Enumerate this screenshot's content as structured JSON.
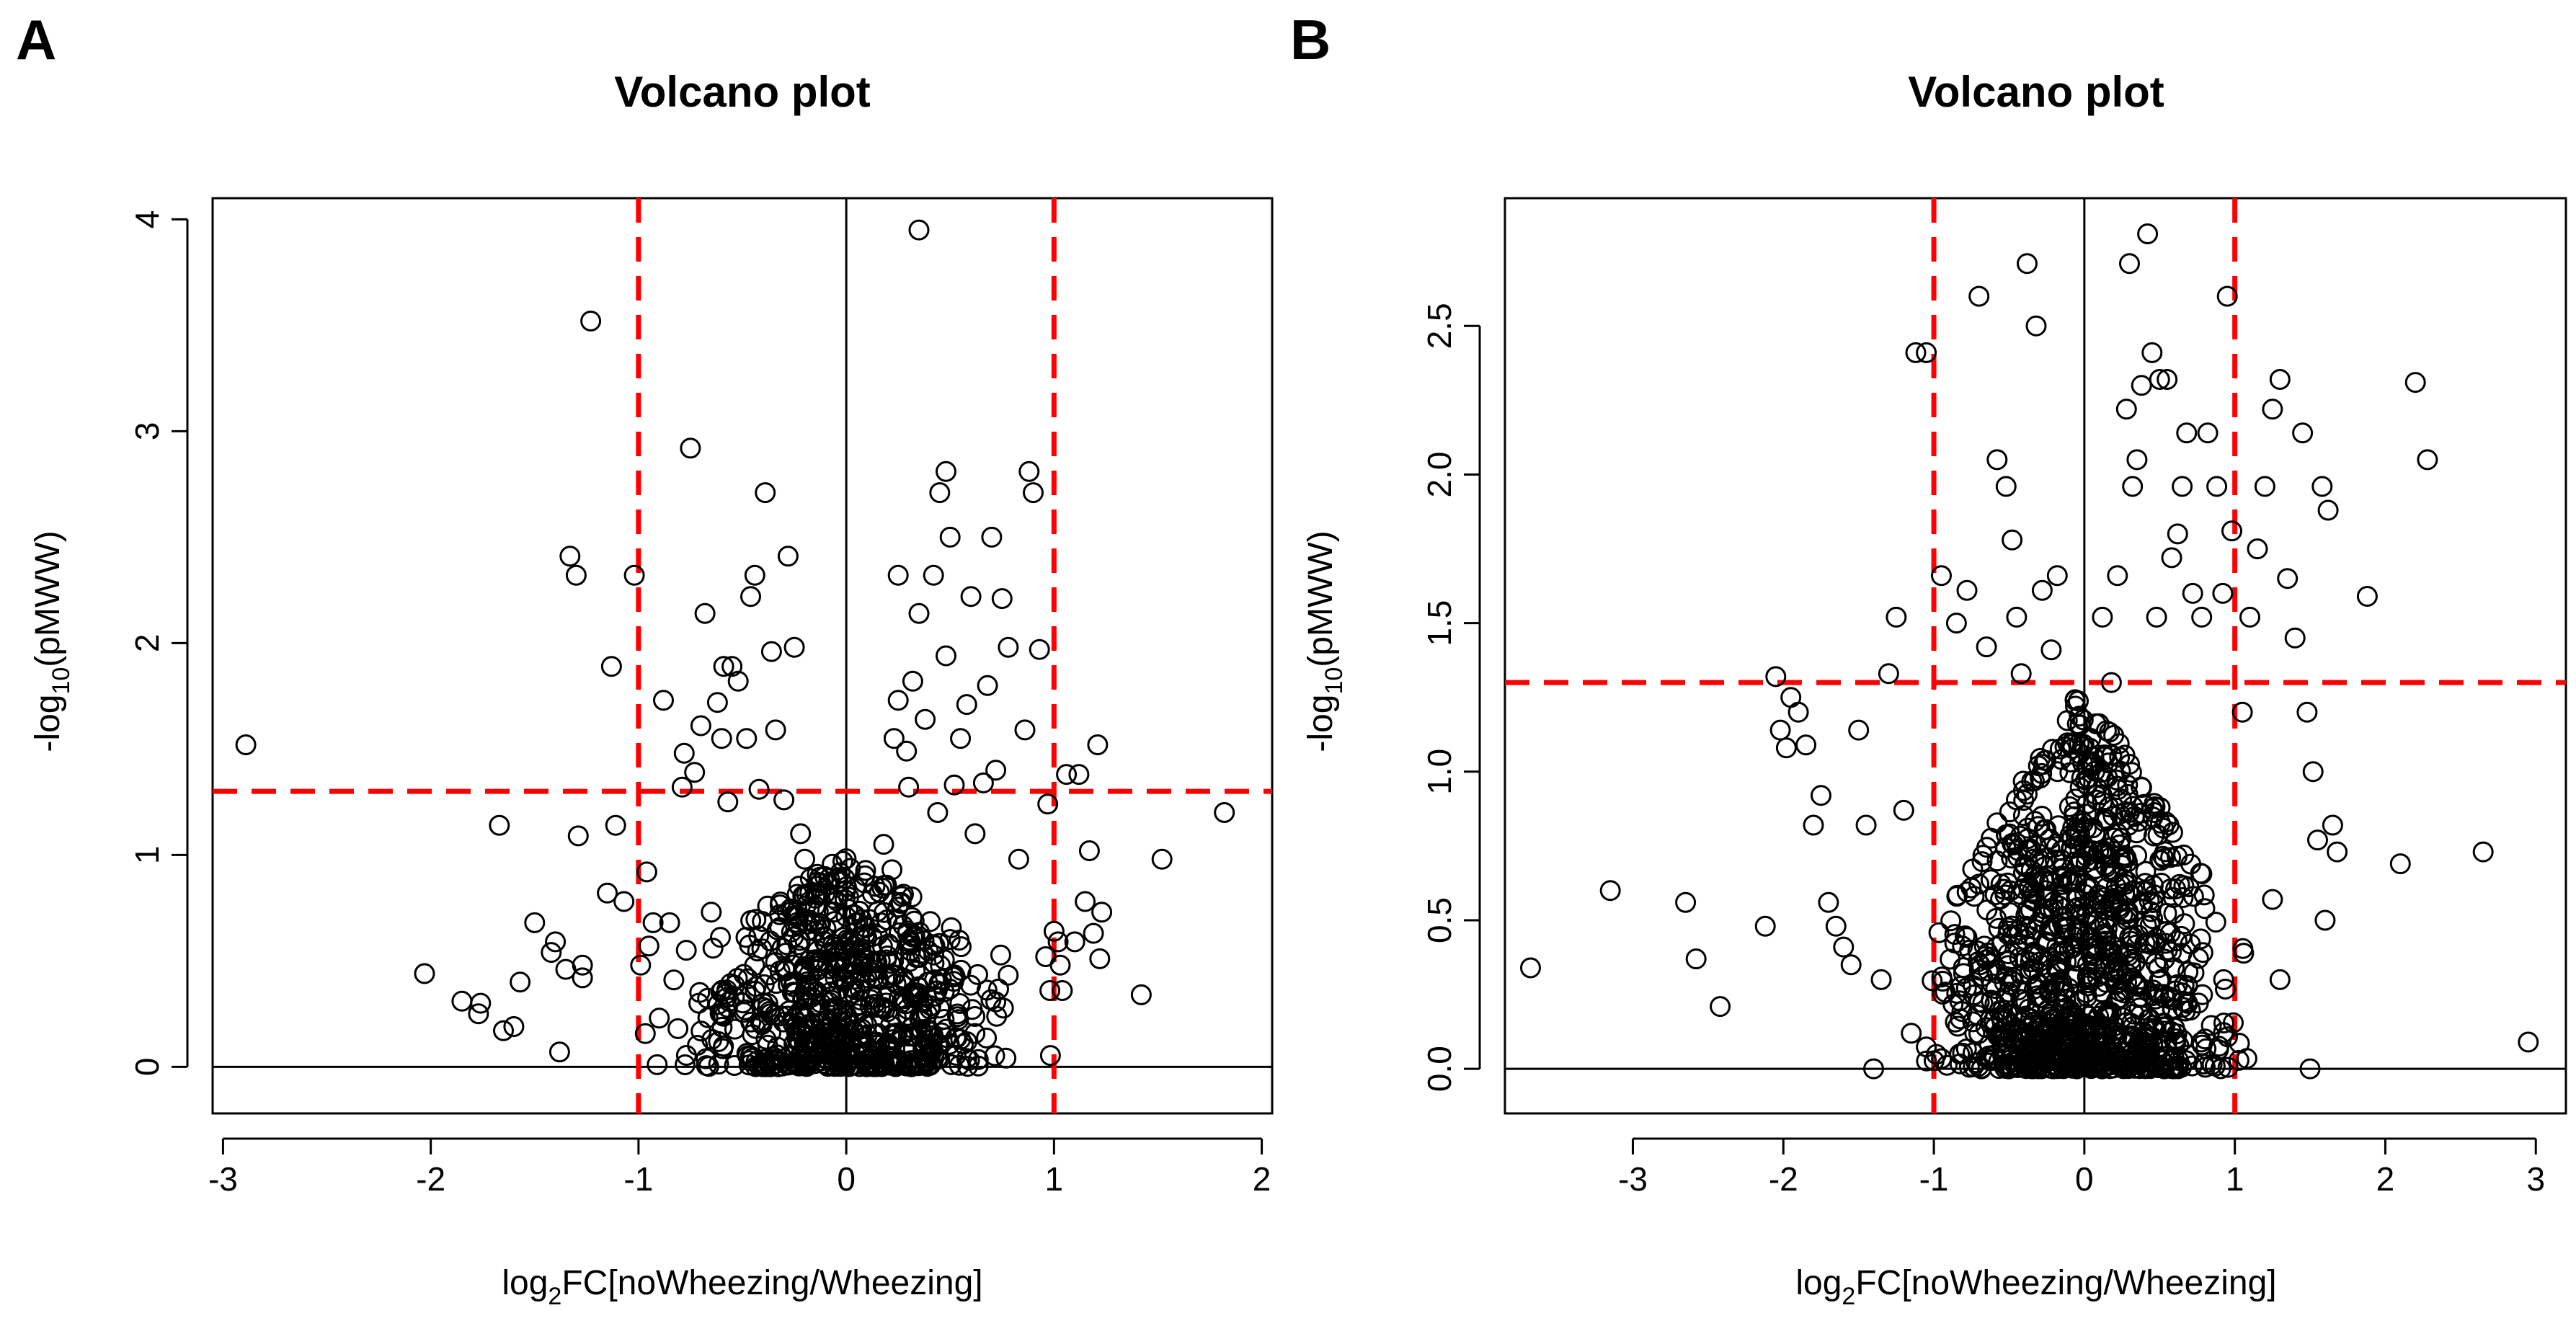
{
  "chart_data": [
    {
      "panel": "A",
      "type": "scatter",
      "title": "Volcano plot",
      "xlabel": {
        "prefix": "log",
        "sub": "2",
        "suffix": "FC[noWheezing/Wheezing]"
      },
      "ylabel": {
        "prefix": "-log",
        "sub": "10",
        "suffix": "(pMWW)"
      },
      "xlim": [
        -3.05,
        2.05
      ],
      "ylim": [
        -0.22,
        4.1
      ],
      "xticks": [
        {
          "v": -3,
          "label": "-3"
        },
        {
          "v": -2,
          "label": "-2"
        },
        {
          "v": -1,
          "label": "-1"
        },
        {
          "v": 0,
          "label": "0"
        },
        {
          "v": 1,
          "label": "1"
        },
        {
          "v": 2,
          "label": "2"
        }
      ],
      "yticks": [
        {
          "v": 0,
          "label": "0"
        },
        {
          "v": 1,
          "label": "1"
        },
        {
          "v": 2,
          "label": "2"
        },
        {
          "v": 3,
          "label": "3"
        },
        {
          "v": 4,
          "label": "4"
        }
      ],
      "vlines_dashed": [
        -1,
        1
      ],
      "hline_dashed": 1.3,
      "zero_lines": {
        "x": 0,
        "y": 0
      },
      "colors": {
        "threshold": "#ff0000",
        "points": "#000000",
        "axes": "#000000"
      },
      "points": [
        [
          -2.89,
          1.52
        ],
        [
          -2.03,
          0.44
        ],
        [
          -1.85,
          0.31
        ],
        [
          -1.76,
          0.3
        ],
        [
          -1.77,
          0.25
        ],
        [
          -1.67,
          1.14
        ],
        [
          -1.65,
          0.17
        ],
        [
          -1.6,
          0.19
        ],
        [
          -1.57,
          0.4
        ],
        [
          -1.5,
          0.68
        ],
        [
          -1.42,
          0.54
        ],
        [
          -1.4,
          0.59
        ],
        [
          -1.38,
          0.07
        ],
        [
          -1.35,
          0.46
        ],
        [
          -1.33,
          2.41
        ],
        [
          -1.3,
          2.32
        ],
        [
          -1.29,
          1.09
        ],
        [
          -1.27,
          0.48
        ],
        [
          -1.27,
          0.42
        ],
        [
          -1.23,
          3.52
        ],
        [
          -1.15,
          0.82
        ],
        [
          -1.13,
          1.89
        ],
        [
          -1.11,
          1.14
        ],
        [
          -1.07,
          0.78
        ],
        [
          -1.02,
          2.32
        ],
        [
          -0.99,
          0.48
        ],
        [
          -0.96,
          0.92
        ],
        [
          -0.95,
          0.57
        ],
        [
          -0.93,
          0.68
        ],
        [
          -0.91,
          0.01
        ],
        [
          -0.9,
          0.23
        ],
        [
          -0.88,
          1.73
        ],
        [
          -0.85,
          0.68
        ],
        [
          -0.83,
          0.41
        ],
        [
          -0.81,
          0.18
        ],
        [
          -0.79,
          1.32
        ],
        [
          -0.78,
          1.48
        ],
        [
          -0.77,
          0.55
        ],
        [
          -0.75,
          2.92
        ],
        [
          -0.73,
          1.39
        ],
        [
          -0.71,
          0.3
        ],
        [
          -0.7,
          1.61
        ],
        [
          -0.68,
          2.14
        ],
        [
          -0.65,
          0.73
        ],
        [
          -0.62,
          1.72
        ],
        [
          -0.6,
          1.55
        ],
        [
          -0.59,
          1.89
        ],
        [
          -0.57,
          1.25
        ],
        [
          -0.55,
          1.89
        ],
        [
          -0.52,
          1.82
        ],
        [
          -0.48,
          1.55
        ],
        [
          -0.46,
          2.22
        ],
        [
          -0.44,
          2.32
        ],
        [
          -0.42,
          1.31
        ],
        [
          -0.39,
          2.71
        ],
        [
          -0.36,
          1.96
        ],
        [
          -0.34,
          1.59
        ],
        [
          -0.3,
          1.26
        ],
        [
          -0.28,
          2.41
        ],
        [
          -0.25,
          1.98
        ],
        [
          -0.22,
          1.1
        ],
        [
          -0.2,
          0.98
        ],
        [
          -0.15,
          0.64
        ],
        [
          -0.1,
          0.18
        ],
        [
          -0.05,
          0.08
        ],
        [
          0.05,
          0.25
        ],
        [
          0.1,
          0.42
        ],
        [
          0.15,
          0.62
        ],
        [
          0.18,
          1.05
        ],
        [
          0.22,
          0.93
        ],
        [
          0.23,
          1.55
        ],
        [
          0.25,
          1.73
        ],
        [
          0.25,
          2.32
        ],
        [
          0.29,
          1.49
        ],
        [
          0.3,
          1.32
        ],
        [
          0.32,
          1.82
        ],
        [
          0.35,
          2.14
        ],
        [
          0.35,
          3.95
        ],
        [
          0.38,
          1.64
        ],
        [
          0.42,
          2.32
        ],
        [
          0.44,
          1.2
        ],
        [
          0.45,
          2.71
        ],
        [
          0.48,
          1.94
        ],
        [
          0.48,
          2.81
        ],
        [
          0.5,
          2.5
        ],
        [
          0.52,
          1.33
        ],
        [
          0.55,
          1.55
        ],
        [
          0.58,
          1.71
        ],
        [
          0.6,
          2.22
        ],
        [
          0.62,
          1.1
        ],
        [
          0.66,
          1.34
        ],
        [
          0.68,
          1.8
        ],
        [
          0.7,
          2.5
        ],
        [
          0.72,
          1.4
        ],
        [
          0.75,
          2.21
        ],
        [
          0.78,
          1.98
        ],
        [
          0.83,
          0.98
        ],
        [
          0.86,
          1.59
        ],
        [
          0.88,
          2.81
        ],
        [
          0.9,
          2.71
        ],
        [
          0.93,
          1.97
        ],
        [
          0.96,
          0.52
        ],
        [
          0.97,
          1.24
        ],
        [
          0.98,
          0.36
        ],
        [
          1.0,
          0.64
        ],
        [
          1.02,
          0.59
        ],
        [
          1.03,
          0.48
        ],
        [
          1.04,
          0.36
        ],
        [
          1.06,
          1.38
        ],
        [
          1.1,
          0.59
        ],
        [
          1.12,
          1.38
        ],
        [
          1.15,
          0.78
        ],
        [
          1.17,
          1.02
        ],
        [
          1.19,
          0.63
        ],
        [
          1.21,
          1.52
        ],
        [
          1.22,
          0.51
        ],
        [
          1.23,
          0.73
        ],
        [
          1.42,
          0.34
        ],
        [
          1.52,
          0.98
        ],
        [
          1.82,
          1.2
        ]
      ],
      "cluster": {
        "n": 700,
        "seed": 11,
        "x_sd": 0.32,
        "y_max": 1.0
      }
    },
    {
      "panel": "B",
      "type": "scatter",
      "title": "Volcano plot",
      "xlabel": {
        "prefix": "log",
        "sub": "2",
        "suffix": "FC[noWheezing/Wheezing]"
      },
      "ylabel": {
        "prefix": "-log",
        "sub": "10",
        "suffix": "(pMWW)"
      },
      "xlim": [
        -3.85,
        3.2
      ],
      "ylim": [
        -0.15,
        2.93
      ],
      "xticks": [
        {
          "v": -3,
          "label": "-3"
        },
        {
          "v": -2,
          "label": "-2"
        },
        {
          "v": -1,
          "label": "-1"
        },
        {
          "v": 0,
          "label": "0"
        },
        {
          "v": 1,
          "label": "1"
        },
        {
          "v": 2,
          "label": "2"
        },
        {
          "v": 3,
          "label": "3"
        }
      ],
      "yticks": [
        {
          "v": 0,
          "label": "0.0"
        },
        {
          "v": 0.5,
          "label": "0.5"
        },
        {
          "v": 1.0,
          "label": "1.0"
        },
        {
          "v": 1.5,
          "label": "1.5"
        },
        {
          "v": 2.0,
          "label": "2.0"
        },
        {
          "v": 2.5,
          "label": "2.5"
        }
      ],
      "vlines_dashed": [
        -1,
        1
      ],
      "hline_dashed": 1.3,
      "zero_lines": {
        "x": 0,
        "y": 0
      },
      "colors": {
        "threshold": "#ff0000",
        "points": "#000000",
        "axes": "#000000"
      },
      "points": [
        [
          -3.68,
          0.34
        ],
        [
          -3.15,
          0.6
        ],
        [
          -2.65,
          0.56
        ],
        [
          -2.58,
          0.37
        ],
        [
          -2.42,
          0.21
        ],
        [
          -2.12,
          0.48
        ],
        [
          -2.05,
          1.32
        ],
        [
          -2.02,
          1.14
        ],
        [
          -1.98,
          1.08
        ],
        [
          -1.95,
          1.25
        ],
        [
          -1.9,
          1.2
        ],
        [
          -1.85,
          1.09
        ],
        [
          -1.8,
          0.82
        ],
        [
          -1.75,
          0.92
        ],
        [
          -1.7,
          0.56
        ],
        [
          -1.65,
          0.48
        ],
        [
          -1.6,
          0.41
        ],
        [
          -1.55,
          0.35
        ],
        [
          -1.5,
          1.14
        ],
        [
          -1.45,
          0.82
        ],
        [
          -1.4,
          0.0
        ],
        [
          -1.35,
          0.3
        ],
        [
          -1.3,
          1.33
        ],
        [
          -1.25,
          1.52
        ],
        [
          -1.2,
          0.87
        ],
        [
          -1.15,
          0.12
        ],
        [
          -1.12,
          2.41
        ],
        [
          -1.05,
          2.41
        ],
        [
          -0.95,
          1.66
        ],
        [
          -0.85,
          1.5
        ],
        [
          -0.78,
          1.61
        ],
        [
          -0.7,
          2.6
        ],
        [
          -0.65,
          1.42
        ],
        [
          -0.58,
          2.05
        ],
        [
          -0.52,
          1.96
        ],
        [
          -0.48,
          1.78
        ],
        [
          -0.45,
          1.52
        ],
        [
          -0.42,
          1.33
        ],
        [
          -0.38,
          2.71
        ],
        [
          -0.32,
          2.5
        ],
        [
          -0.28,
          1.61
        ],
        [
          -0.22,
          1.41
        ],
        [
          -0.18,
          1.66
        ],
        [
          0.12,
          1.52
        ],
        [
          0.18,
          1.3
        ],
        [
          0.22,
          1.66
        ],
        [
          0.28,
          2.22
        ],
        [
          0.3,
          2.71
        ],
        [
          0.32,
          1.96
        ],
        [
          0.35,
          2.05
        ],
        [
          0.38,
          2.3
        ],
        [
          0.42,
          2.81
        ],
        [
          0.45,
          2.41
        ],
        [
          0.48,
          1.52
        ],
        [
          0.5,
          2.32
        ],
        [
          0.55,
          2.32
        ],
        [
          0.58,
          1.72
        ],
        [
          0.62,
          1.8
        ],
        [
          0.65,
          1.96
        ],
        [
          0.68,
          2.14
        ],
        [
          0.72,
          1.6
        ],
        [
          0.78,
          1.52
        ],
        [
          0.82,
          2.14
        ],
        [
          0.88,
          1.96
        ],
        [
          0.92,
          1.6
        ],
        [
          0.95,
          2.6
        ],
        [
          0.98,
          1.81
        ],
        [
          1.05,
          1.2
        ],
        [
          1.1,
          1.52
        ],
        [
          1.15,
          1.75
        ],
        [
          1.2,
          1.96
        ],
        [
          1.25,
          2.22
        ],
        [
          1.3,
          2.32
        ],
        [
          1.35,
          1.65
        ],
        [
          1.4,
          1.45
        ],
        [
          1.45,
          2.14
        ],
        [
          1.48,
          1.2
        ],
        [
          1.52,
          1.0
        ],
        [
          1.55,
          0.77
        ],
        [
          1.58,
          1.96
        ],
        [
          1.6,
          0.5
        ],
        [
          1.62,
          1.88
        ],
        [
          1.65,
          0.82
        ],
        [
          1.68,
          0.73
        ],
        [
          1.5,
          0.0
        ],
        [
          1.88,
          1.59
        ],
        [
          2.1,
          0.69
        ],
        [
          2.2,
          2.31
        ],
        [
          2.28,
          2.05
        ],
        [
          2.65,
          0.73
        ],
        [
          2.95,
          0.09
        ],
        [
          1.25,
          0.57
        ],
        [
          1.3,
          0.3
        ]
      ],
      "cluster": {
        "n": 1100,
        "seed": 23,
        "x_sd": 0.42,
        "y_max": 1.3
      }
    }
  ]
}
